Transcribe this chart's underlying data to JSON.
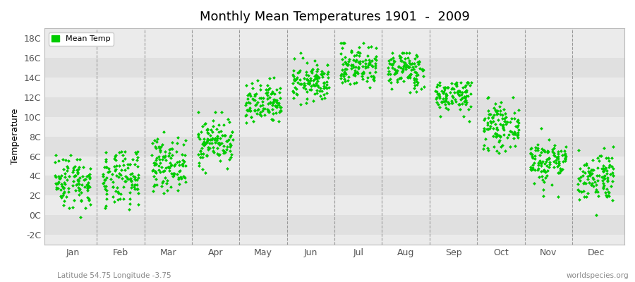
{
  "title": "Monthly Mean Temperatures 1901  -  2009",
  "ylabel": "Temperature",
  "subtitle_left": "Latitude 54.75 Longitude -3.75",
  "subtitle_right": "worldspecies.org",
  "legend_label": "Mean Temp",
  "marker_color": "#00CC00",
  "background_color": "#ffffff",
  "plot_bg_even": "#e0e0e0",
  "plot_bg_odd": "#ebebeb",
  "ylim": [
    -3,
    19
  ],
  "yticks": [
    -2,
    0,
    2,
    4,
    6,
    8,
    10,
    12,
    14,
    16,
    18
  ],
  "ytick_labels": [
    "-2C",
    "0C",
    "2C",
    "4C",
    "6C",
    "8C",
    "10C",
    "12C",
    "14C",
    "16C",
    "18C"
  ],
  "months": [
    "Jan",
    "Feb",
    "Mar",
    "Apr",
    "May",
    "Jun",
    "Jul",
    "Aug",
    "Sep",
    "Oct",
    "Nov",
    "Dec"
  ],
  "monthly_means": [
    3.5,
    3.6,
    5.2,
    7.5,
    11.2,
    13.5,
    15.2,
    14.8,
    12.2,
    9.0,
    5.5,
    4.0
  ],
  "monthly_stds": [
    1.4,
    1.5,
    1.3,
    1.2,
    1.1,
    1.0,
    1.1,
    1.0,
    0.9,
    1.1,
    1.2,
    1.3
  ],
  "monthly_mins": [
    -2.2,
    -1.8,
    0.5,
    3.5,
    7.5,
    10.5,
    12.0,
    11.5,
    9.0,
    5.5,
    1.5,
    0.0
  ],
  "monthly_maxs": [
    7.0,
    6.5,
    8.5,
    10.5,
    15.5,
    16.5,
    17.5,
    16.5,
    13.5,
    13.0,
    10.5,
    7.0
  ],
  "n_years": 109,
  "seed": 42
}
